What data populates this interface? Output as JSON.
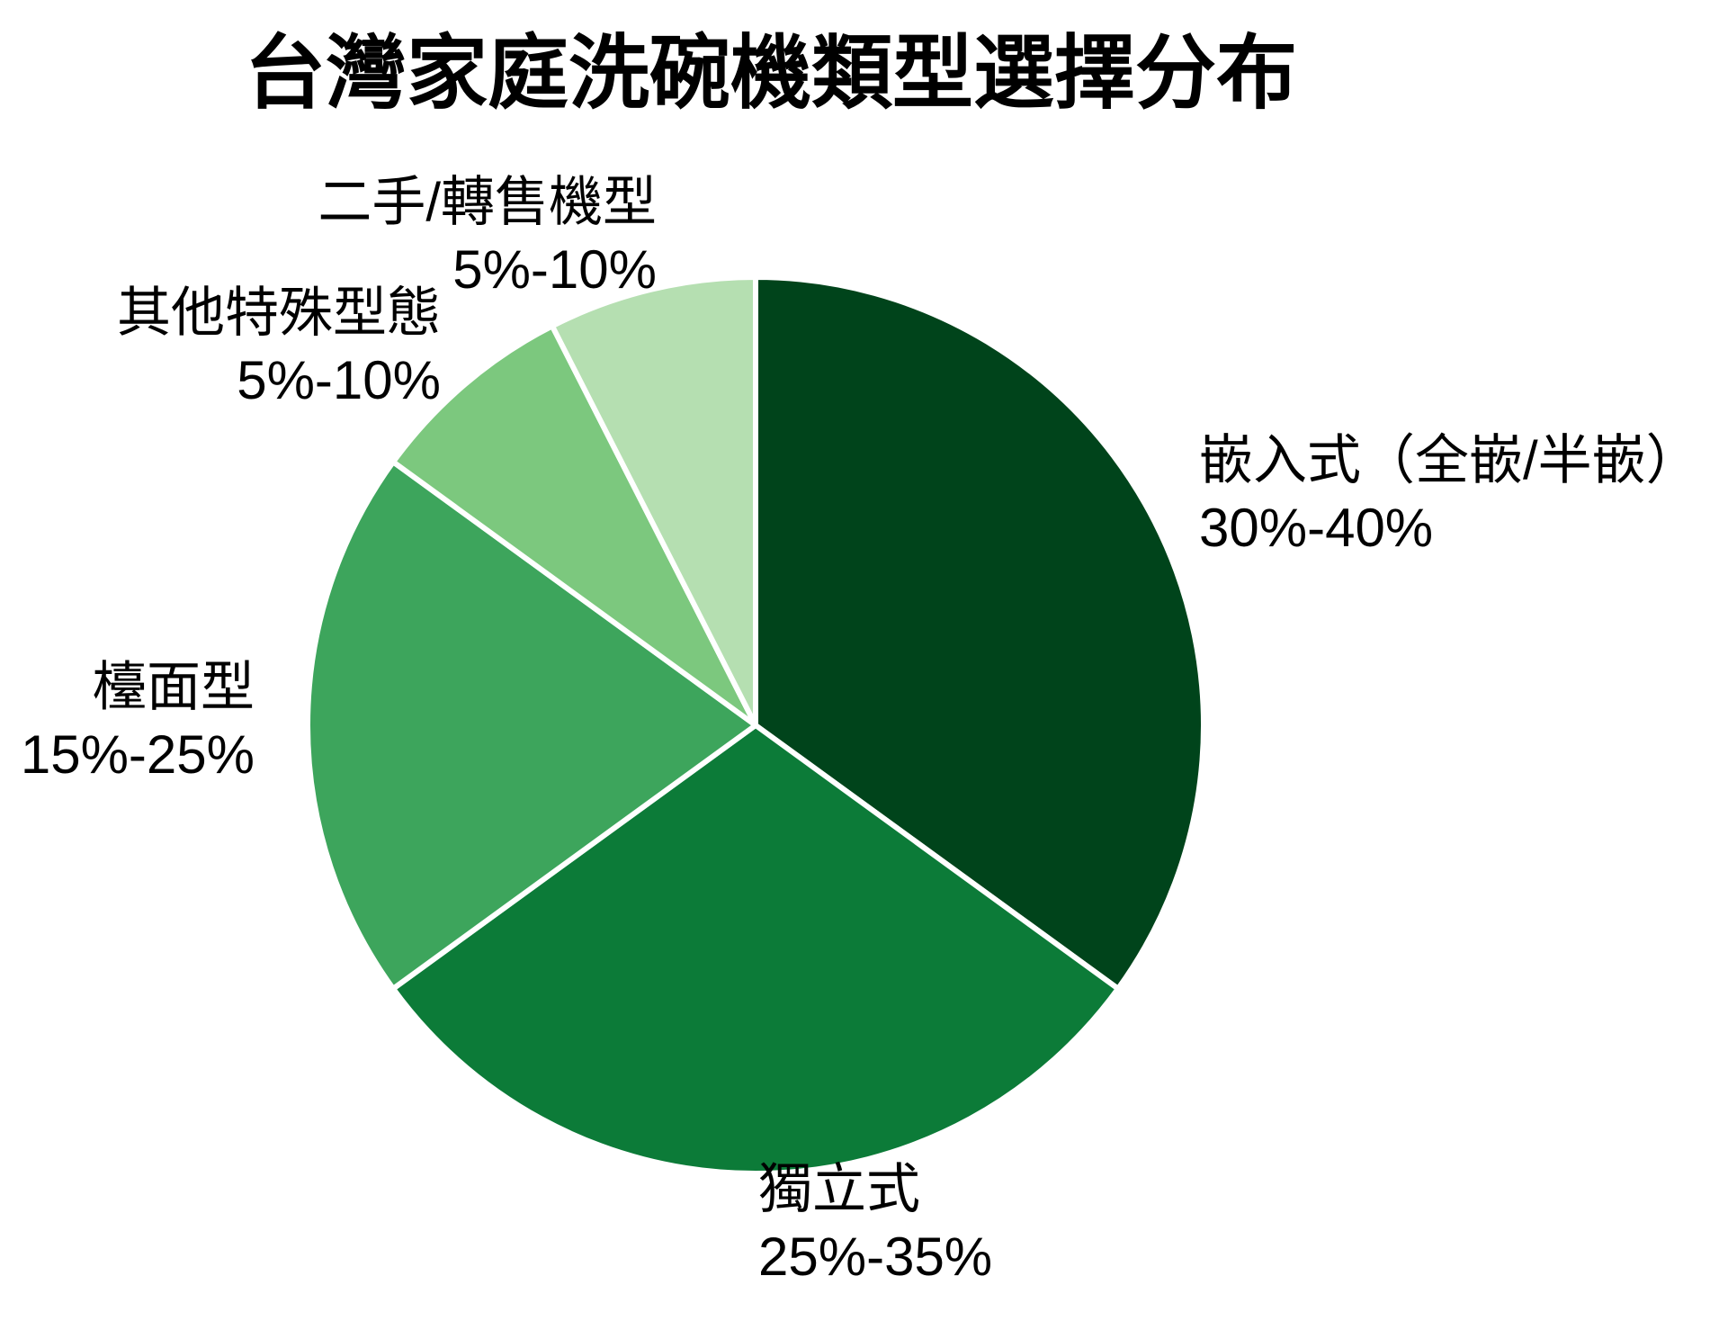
{
  "title": "台灣家庭洗碗機類型選擇分布",
  "chart_data": {
    "type": "pie",
    "title": "台灣家庭洗碗機類型選擇分布",
    "direction": "clockwise",
    "start_angle": "12-oclock",
    "legend": "none",
    "background": "#ffffff",
    "stroke_color": "#ffffff",
    "stroke_width": 6,
    "slices": [
      {
        "label": "嵌入式（全嵌/半嵌）",
        "range": "30%-40%",
        "value": 35,
        "color": "#00441b"
      },
      {
        "label": "獨立式",
        "range": "25%-35%",
        "value": 30,
        "color": "#0c7b38"
      },
      {
        "label": "檯面型",
        "range": "15%-25%",
        "value": 20,
        "color": "#3da55c"
      },
      {
        "label": "其他特殊型態",
        "range": "5%-10%",
        "value": 7.5,
        "color": "#7cc87e"
      },
      {
        "label": "二手/轉售機型",
        "range": "5%-10%",
        "value": 7.5,
        "color": "#b5dfb1"
      }
    ]
  }
}
